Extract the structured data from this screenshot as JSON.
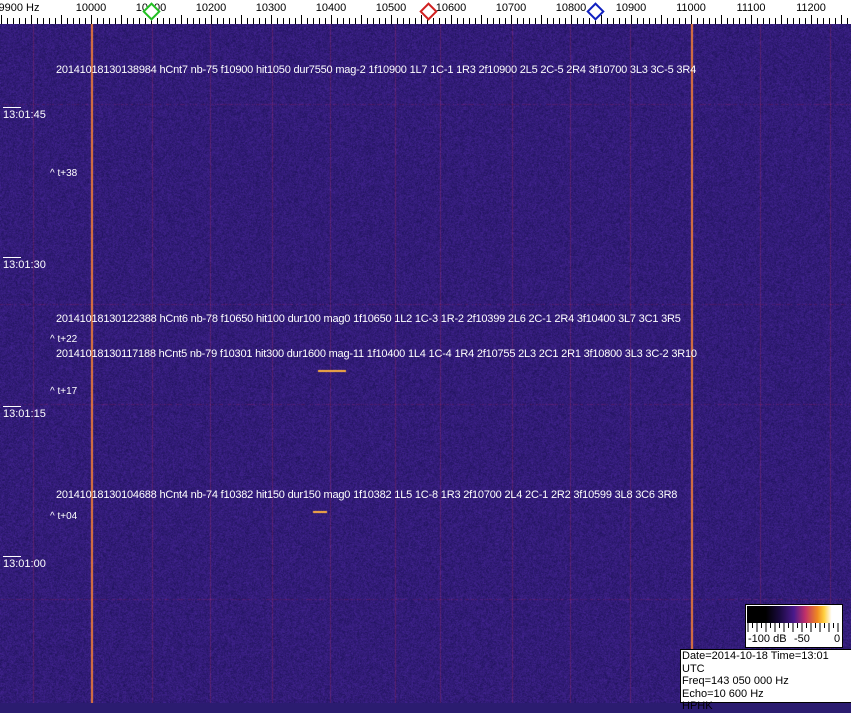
{
  "axis": {
    "labels": [
      {
        "text": "9900 Hz",
        "f": 9900
      },
      {
        "text": "10000",
        "f": 10000
      },
      {
        "text": "10100",
        "f": 10100
      },
      {
        "text": "10200",
        "f": 10200
      },
      {
        "text": "10300",
        "f": 10300
      },
      {
        "text": "10400",
        "f": 10400
      },
      {
        "text": "10500",
        "f": 10500
      },
      {
        "text": "10600",
        "f": 10600
      },
      {
        "text": "10700",
        "f": 10700
      },
      {
        "text": "10800",
        "f": 10800
      },
      {
        "text": "10900",
        "f": 10900
      },
      {
        "text": "11000",
        "f": 11000
      },
      {
        "text": "11100",
        "f": 11100
      },
      {
        "text": "11200",
        "f": 11200
      }
    ]
  },
  "markers": [
    {
      "name": "green",
      "color": "#22c022",
      "f": 10100
    },
    {
      "name": "red",
      "color": "#d02020",
      "f": 10562
    },
    {
      "name": "blue",
      "color": "#1020c0",
      "f": 10840
    }
  ],
  "detections": [
    "20141018130138984 hCnt7 nb-75 f10900 hit1050 dur7550 mag-2 1f10900 1L7 1C-1 1R3 2f10900 2L5 2C-5 2R4 3f10700 3L3 3C-5 3R4",
    "20141018130122388 hCnt6 nb-78 f10650 hit100 dur100 mag0 1f10650 1L2 1C-3 1R-2 2f10399 2L6 2C-1 2R4 3f10400 3L7 3C1 3R5",
    "20141018130117188 hCnt5 nb-79 f10301 hit300 dur1600 mag-11 1f10400 1L4 1C-4 1R4 2f10755 2L3 2C1 2R1 3f10800 3L3 3C-2 3R10",
    "20141018130104688 hCnt4 nb-74 f10382 hit150 dur150 mag0 1f10382 1L5 1C-8 1R3 2f10700 2L4 2C-1 2R2 3f10599 3L8 3C6 3R8"
  ],
  "notes": [
    "^ t+38",
    "^ t+22",
    "^ t+17",
    "^ t+04"
  ],
  "times": [
    "13:01:45",
    "13:01:30",
    "13:01:15",
    "13:01:00"
  ],
  "scale": {
    "min": "-100 dB",
    "mid": "-50",
    "max": "0"
  },
  "info": {
    "date_time": "Date=2014-10-18 Time=13:01 UTC",
    "freq": "Freq=143 050 000 Hz",
    "echo": "Echo=10 600 Hz",
    "station": "HPHK"
  },
  "colors": {
    "background": "#2b1c70",
    "carrier": "#f08040"
  }
}
